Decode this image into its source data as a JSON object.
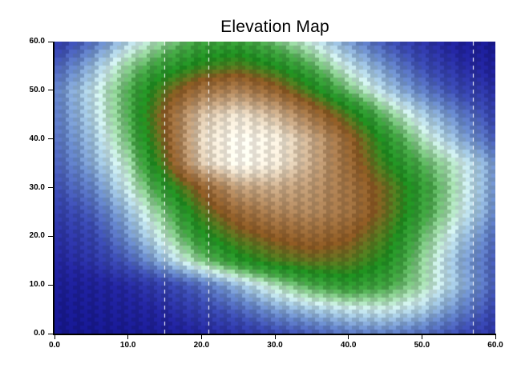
{
  "figure": {
    "background": "#ffffff"
  },
  "chart_data": {
    "type": "heatmap",
    "title": "Elevation Map",
    "xlabel": "",
    "ylabel": "",
    "xlim": [
      0,
      60
    ],
    "ylim": [
      0,
      60
    ],
    "grid_lines": "off",
    "legend": "none",
    "x_tick_values": [
      0,
      10,
      20,
      30,
      40,
      50,
      60
    ],
    "x_tick_labels": [
      "0.0",
      "10.0",
      "20.0",
      "30.0",
      "40.0",
      "50.0",
      "60.0"
    ],
    "y_tick_values": [
      0,
      10,
      20,
      30,
      40,
      50,
      60
    ],
    "y_tick_labels": [
      "0.0",
      "10.0",
      "20.0",
      "30.0",
      "40.0",
      "50.0",
      "60.0"
    ],
    "grid_x": [
      0,
      5,
      10,
      15,
      20,
      25,
      30,
      35,
      40,
      45,
      50,
      55,
      60
    ],
    "grid_y": [
      0,
      5,
      10,
      15,
      20,
      25,
      30,
      35,
      40,
      45,
      50,
      55,
      60
    ],
    "elevation_peak": {
      "x": 25.5,
      "y": 37.5,
      "value": 100
    },
    "elevation": [
      [
        2,
        2,
        3,
        5,
        8,
        11,
        15,
        18,
        21,
        22,
        20,
        16,
        11
      ],
      [
        3,
        4,
        6,
        9,
        14,
        19,
        25,
        29,
        32,
        33,
        30,
        23,
        15
      ],
      [
        5,
        6,
        9,
        14,
        20,
        28,
        36,
        43,
        47,
        44,
        37,
        28,
        18
      ],
      [
        8,
        11,
        18,
        28,
        39,
        48,
        54,
        57,
        56,
        50,
        38,
        27,
        18
      ],
      [
        10,
        14,
        24,
        35,
        48,
        57,
        62,
        65,
        62,
        54,
        41,
        30,
        20
      ],
      [
        13,
        18,
        28,
        40,
        55,
        66,
        72,
        73,
        68,
        58,
        45,
        34,
        23
      ],
      [
        16,
        22,
        33,
        47,
        63,
        78,
        80,
        76,
        68,
        58,
        46,
        35,
        24
      ],
      [
        18,
        26,
        36,
        56,
        85,
        97,
        92,
        80,
        66,
        52,
        42,
        34,
        24
      ],
      [
        20,
        28,
        40,
        60,
        88,
        97,
        93,
        80,
        64,
        48,
        36,
        27,
        18
      ],
      [
        21,
        30,
        42,
        62,
        84,
        90,
        82,
        68,
        54,
        40,
        30,
        22,
        14
      ],
      [
        22,
        31,
        42,
        56,
        68,
        72,
        64,
        52,
        40,
        30,
        22,
        15,
        10
      ],
      [
        18,
        27,
        38,
        46,
        52,
        55,
        50,
        42,
        32,
        24,
        16,
        10,
        6
      ],
      [
        12,
        20,
        30,
        38,
        44,
        45,
        40,
        33,
        25,
        17,
        11,
        6,
        3
      ]
    ],
    "colormap": [
      {
        "v": 0,
        "c": "#111287"
      },
      {
        "v": 8,
        "c": "#22249b"
      },
      {
        "v": 16,
        "c": "#3a4aae"
      },
      {
        "v": 23,
        "c": "#6484c4"
      },
      {
        "v": 29,
        "c": "#9fc2da"
      },
      {
        "v": 33,
        "c": "#c9e6e4"
      },
      {
        "v": 37,
        "c": "#9ad2a2"
      },
      {
        "v": 43,
        "c": "#43a143"
      },
      {
        "v": 50,
        "c": "#1d8a1e"
      },
      {
        "v": 55,
        "c": "#50781e"
      },
      {
        "v": 61,
        "c": "#875621"
      },
      {
        "v": 70,
        "c": "#a3774a"
      },
      {
        "v": 80,
        "c": "#c4a685"
      },
      {
        "v": 90,
        "c": "#e7ddcb"
      },
      {
        "v": 100,
        "c": "#fffdf6"
      }
    ],
    "mesh": {
      "columns": 60,
      "rows": 73,
      "brick_offset": true,
      "checker_contrast": 0.07
    }
  }
}
